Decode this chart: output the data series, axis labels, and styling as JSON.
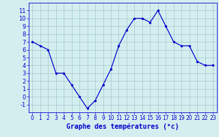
{
  "hours": [
    0,
    1,
    2,
    3,
    4,
    5,
    6,
    7,
    8,
    9,
    10,
    11,
    12,
    13,
    14,
    15,
    16,
    17,
    18,
    19,
    20,
    21,
    22,
    23
  ],
  "temps": [
    7.0,
    6.5,
    6.0,
    3.0,
    3.0,
    1.5,
    0.0,
    -1.5,
    -0.5,
    1.5,
    3.5,
    6.5,
    8.5,
    10.0,
    10.0,
    9.5,
    11.0,
    9.0,
    7.0,
    6.5,
    6.5,
    4.5,
    4.0,
    4.0
  ],
  "line_color": "#0000cc",
  "marker": "o",
  "marker_size": 2.0,
  "line_width": 0.9,
  "bg_color": "#d4eef0",
  "grid_color": "#a0c8cc",
  "xlabel": "Graphe des températures (°c)",
  "xlabel_fontsize": 7,
  "tick_fontsize": 6,
  "xlim": [
    -0.5,
    23.5
  ],
  "ylim": [
    -2,
    12
  ],
  "yticks": [
    -1,
    0,
    1,
    2,
    3,
    4,
    5,
    6,
    7,
    8,
    9,
    10,
    11
  ],
  "xticks": [
    0,
    1,
    2,
    3,
    4,
    5,
    6,
    7,
    8,
    9,
    10,
    11,
    12,
    13,
    14,
    15,
    16,
    17,
    18,
    19,
    20,
    21,
    22,
    23
  ],
  "spine_color": "#0000cc",
  "label_color": "#0000cc"
}
